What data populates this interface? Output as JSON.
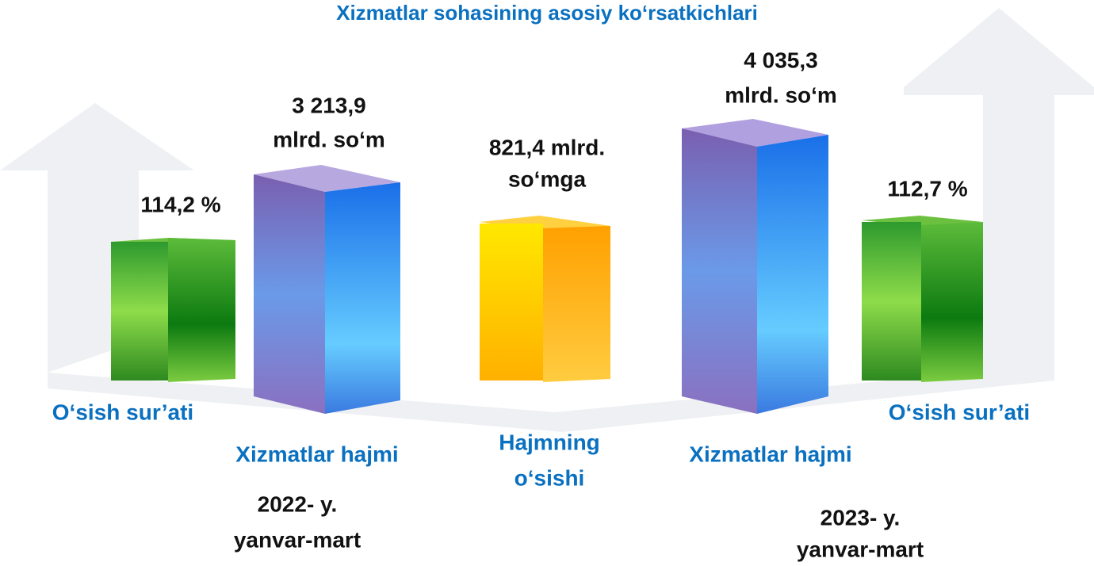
{
  "title": "Xizmatlar sohasining asosiy ko‘rsatkichlari",
  "bars": [
    {
      "value": [
        "114,2 %"
      ],
      "label": [
        "O‘sish sur’ati"
      ]
    },
    {
      "value": [
        "3 213,9",
        "mlrd. so‘m"
      ],
      "label": [
        "Xizmatlar hajmi"
      ]
    },
    {
      "value": [
        "821,4 mlrd.",
        "so‘mga"
      ],
      "label": [
        "Hajmning",
        "o‘sishi"
      ]
    },
    {
      "value": [
        "4 035,3",
        "mlrd. so‘m"
      ],
      "label": [
        "Xizmatlar hajmi"
      ]
    },
    {
      "value": [
        "112,7 %"
      ],
      "label": [
        "O‘sish sur’ati"
      ]
    }
  ],
  "periods": [
    [
      "2022- y.",
      "yanvar-mart"
    ],
    [
      "2023- y.",
      "yanvar-mart"
    ]
  ]
}
